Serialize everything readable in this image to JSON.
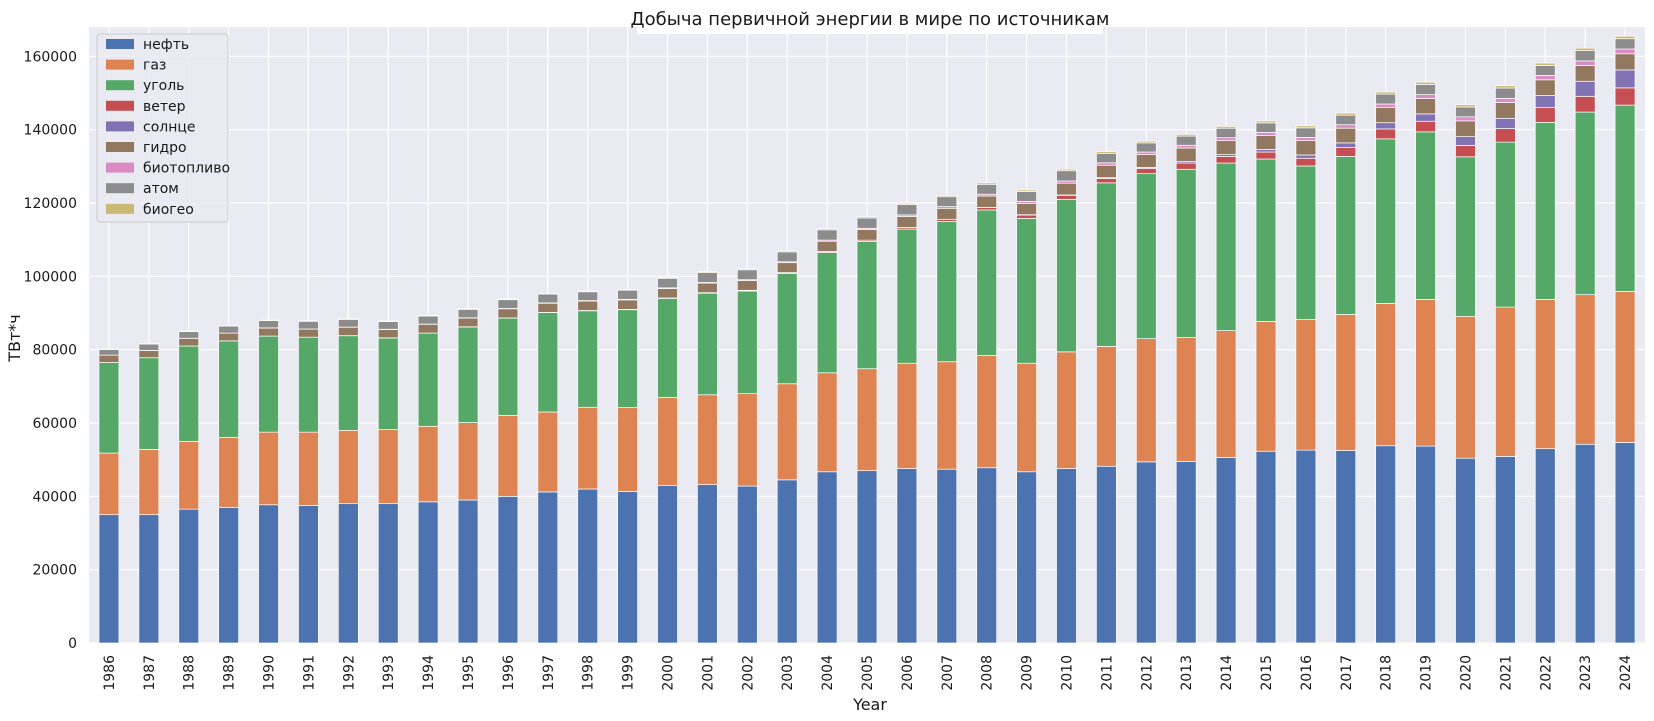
{
  "chart_data": {
    "type": "bar",
    "stacked": true,
    "title": "Добыча первичной энергии в мире по источникам",
    "xlabel": "Year",
    "ylabel": "ТВт*ч",
    "ylim": [
      0,
      168000
    ],
    "yticks": [
      0,
      20000,
      40000,
      60000,
      80000,
      100000,
      120000,
      140000,
      160000
    ],
    "grid": true,
    "legend_position": "top-left",
    "categories": [
      "1986",
      "1987",
      "1988",
      "1989",
      "1990",
      "1991",
      "1992",
      "1993",
      "1994",
      "1995",
      "1996",
      "1997",
      "1998",
      "1999",
      "2000",
      "2001",
      "2002",
      "2003",
      "2004",
      "2005",
      "2006",
      "2007",
      "2008",
      "2009",
      "2010",
      "2011",
      "2012",
      "2013",
      "2014",
      "2015",
      "2016",
      "2017",
      "2018",
      "2019",
      "2020",
      "2021",
      "2022",
      "2023",
      "2024"
    ],
    "series": [
      {
        "name": "нефть",
        "color": "#4c72b0",
        "values": [
          35000,
          35000,
          36500,
          37000,
          37700,
          37500,
          38000,
          38000,
          38500,
          39000,
          40000,
          41200,
          42000,
          41300,
          43000,
          43200,
          42800,
          44500,
          46700,
          47000,
          47600,
          47400,
          47800,
          46700,
          47600,
          48200,
          49400,
          49500,
          50600,
          52300,
          52600,
          52500,
          53800,
          53700,
          50400,
          50900,
          53000,
          54200,
          54700
        ]
      },
      {
        "name": "газ",
        "color": "#dd8452",
        "values": [
          16800,
          17800,
          18500,
          19100,
          19800,
          20000,
          20000,
          20200,
          20600,
          21100,
          22100,
          21800,
          22300,
          22900,
          24000,
          24500,
          25200,
          26200,
          27000,
          27800,
          28700,
          29300,
          30600,
          29600,
          31800,
          32700,
          33600,
          33800,
          34600,
          35400,
          35600,
          37100,
          38800,
          40000,
          38700,
          40700,
          40700,
          40800,
          41200
        ]
      },
      {
        "name": "уголь",
        "color": "#55a868",
        "values": [
          24700,
          25000,
          26000,
          26300,
          26200,
          25900,
          25800,
          25000,
          25400,
          26100,
          26500,
          27100,
          26300,
          26700,
          27000,
          27700,
          28000,
          30100,
          32800,
          34700,
          36600,
          38300,
          39700,
          39500,
          41600,
          44600,
          45000,
          45900,
          45700,
          44300,
          41900,
          43100,
          44900,
          45700,
          43500,
          45000,
          48300,
          49800,
          50800
        ]
      },
      {
        "name": "ветер",
        "color": "#c44e52",
        "values": [
          0,
          0,
          0,
          0,
          10,
          10,
          20,
          20,
          30,
          40,
          50,
          60,
          70,
          80,
          100,
          140,
          180,
          220,
          280,
          360,
          450,
          560,
          700,
          900,
          1100,
          1200,
          1400,
          1700,
          1800,
          1900,
          2100,
          2400,
          2700,
          2900,
          3100,
          3700,
          4000,
          4300,
          4700
        ]
      },
      {
        "name": "солнце",
        "color": "#8172b3",
        "values": [
          0,
          0,
          0,
          0,
          0,
          0,
          0,
          0,
          0,
          0,
          0,
          0,
          0,
          0,
          0,
          0,
          0,
          0,
          0,
          0,
          0,
          0,
          0,
          100,
          100,
          200,
          300,
          400,
          500,
          700,
          900,
          1300,
          1700,
          2000,
          2400,
          2800,
          3300,
          4100,
          4900
        ]
      },
      {
        "name": "гидро",
        "color": "#937860",
        "values": [
          2000,
          2000,
          2100,
          2100,
          2200,
          2200,
          2300,
          2300,
          2400,
          2400,
          2500,
          2500,
          2600,
          2600,
          2600,
          2600,
          2700,
          2700,
          2800,
          2900,
          3000,
          3000,
          3100,
          3100,
          3200,
          3400,
          3500,
          3700,
          3800,
          3800,
          3900,
          4000,
          4100,
          4200,
          4300,
          4300,
          4300,
          4300,
          4400
        ]
      },
      {
        "name": "биотопливо",
        "color": "#da8bc3",
        "values": [
          20,
          20,
          20,
          20,
          30,
          30,
          40,
          50,
          50,
          60,
          80,
          100,
          120,
          140,
          160,
          180,
          200,
          250,
          300,
          350,
          400,
          450,
          500,
          550,
          600,
          650,
          700,
          750,
          800,
          850,
          900,
          950,
          1000,
          1050,
          1100,
          1150,
          1200,
          1250,
          1300
        ]
      },
      {
        "name": "атом",
        "color": "#8c8c8c",
        "values": [
          1500,
          1700,
          1800,
          1900,
          2000,
          2100,
          2100,
          2100,
          2200,
          2300,
          2400,
          2400,
          2400,
          2500,
          2600,
          2700,
          2700,
          2700,
          2800,
          2800,
          2800,
          2700,
          2700,
          2700,
          2800,
          2600,
          2500,
          2500,
          2600,
          2600,
          2600,
          2600,
          2700,
          2800,
          2700,
          2800,
          2700,
          2800,
          2800
        ]
      },
      {
        "name": "биогео",
        "color": "#ccb974",
        "values": [
          100,
          110,
          120,
          130,
          140,
          150,
          160,
          170,
          180,
          190,
          200,
          210,
          220,
          230,
          240,
          250,
          260,
          280,
          300,
          320,
          340,
          360,
          380,
          400,
          420,
          440,
          460,
          480,
          500,
          520,
          540,
          560,
          580,
          600,
          620,
          640,
          660,
          680,
          700
        ]
      }
    ]
  }
}
